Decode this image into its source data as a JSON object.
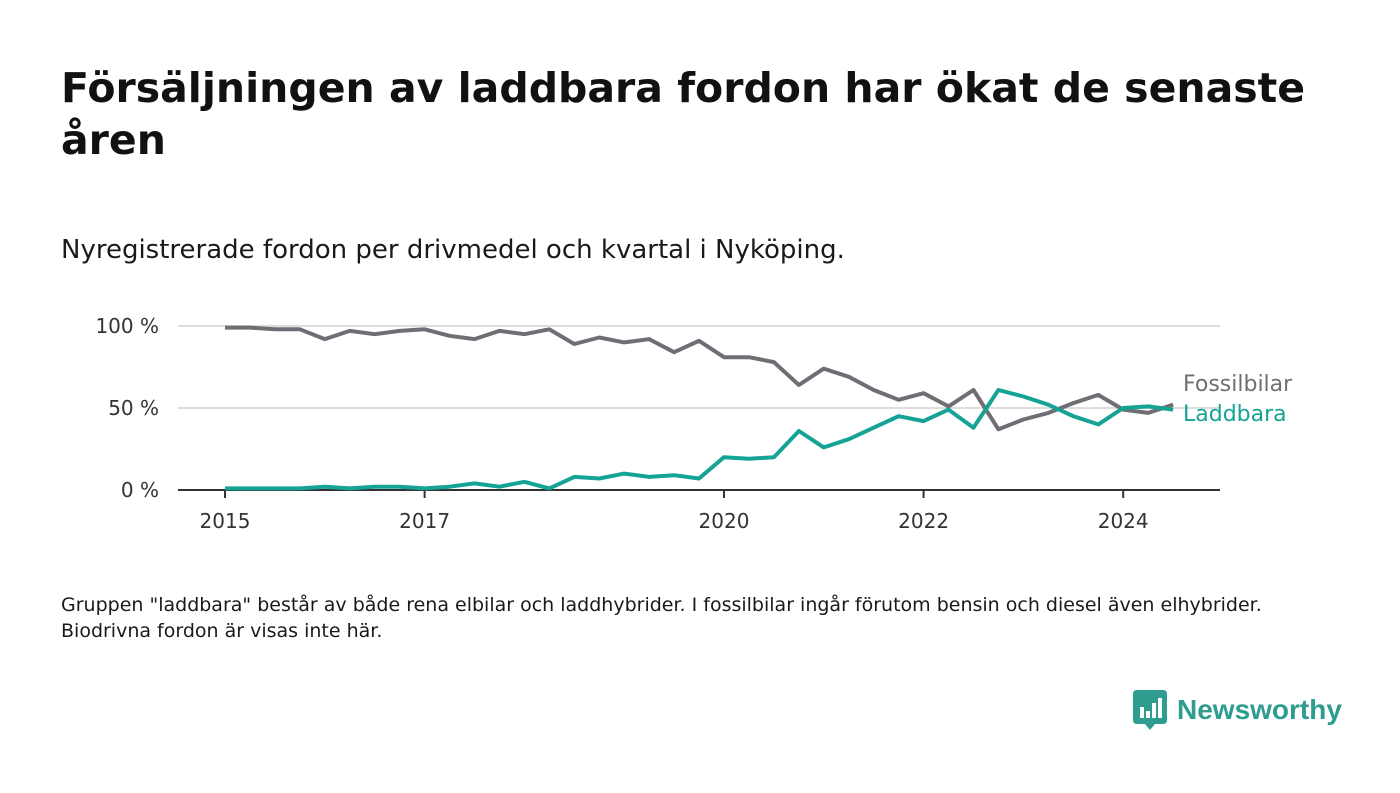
{
  "title": "Försäljningen av laddbara fordon har ökat de senaste åren",
  "subtitle": "Nyregistrerade fordon per drivmedel och kvartal i Nyköping.",
  "note": "Gruppen \"laddbara\" består av både rena elbilar och laddhybrider. I fossilbilar ingår förutom bensin och diesel även elhybrider. Biodrivna fordon är visas inte här.",
  "brand": {
    "name": "Newsworthy",
    "icon": "newsworthy-logo-icon",
    "color": "#2e9c8e"
  },
  "chart_data": {
    "type": "line",
    "x": [
      "2015 Q1",
      "2015 Q2",
      "2015 Q3",
      "2015 Q4",
      "2016 Q1",
      "2016 Q2",
      "2016 Q3",
      "2016 Q4",
      "2017 Q1",
      "2017 Q2",
      "2017 Q3",
      "2017 Q4",
      "2018 Q1",
      "2018 Q2",
      "2018 Q3",
      "2018 Q4",
      "2019 Q1",
      "2019 Q2",
      "2019 Q3",
      "2019 Q4",
      "2020 Q1",
      "2020 Q2",
      "2020 Q3",
      "2020 Q4",
      "2021 Q1",
      "2021 Q2",
      "2021 Q3",
      "2021 Q4",
      "2022 Q1",
      "2022 Q2",
      "2022 Q3",
      "2022 Q4",
      "2023 Q1",
      "2023 Q2",
      "2023 Q3",
      "2023 Q4",
      "2024 Q1",
      "2024 Q2",
      "2024 Q3"
    ],
    "x_ticks": [
      {
        "value": "2015 Q1",
        "label": "2015"
      },
      {
        "value": "2017 Q1",
        "label": "2017"
      },
      {
        "value": "2020 Q1",
        "label": "2020"
      },
      {
        "value": "2022 Q1",
        "label": "2022"
      },
      {
        "value": "2024 Q1",
        "label": "2024"
      }
    ],
    "y_ticks": [
      {
        "value": 0,
        "label": "0 %"
      },
      {
        "value": 50,
        "label": "50 %"
      },
      {
        "value": 100,
        "label": "100 %"
      }
    ],
    "ylim": [
      0,
      100
    ],
    "grid": "horizontal",
    "series": [
      {
        "name": "Fossilbilar",
        "color": "#6f6e74",
        "values": [
          99,
          99,
          98,
          98,
          92,
          97,
          95,
          97,
          98,
          94,
          92,
          97,
          95,
          98,
          89,
          93,
          90,
          92,
          84,
          91,
          81,
          81,
          78,
          64,
          74,
          69,
          61,
          55,
          59,
          51,
          61,
          37,
          43,
          47,
          53,
          58,
          49,
          47,
          52
        ]
      },
      {
        "name": "Laddbara",
        "color": "#14a394",
        "values": [
          1,
          1,
          1,
          1,
          2,
          1,
          2,
          2,
          1,
          2,
          4,
          2,
          5,
          1,
          8,
          7,
          10,
          8,
          9,
          7,
          20,
          19,
          20,
          36,
          26,
          31,
          38,
          45,
          42,
          49,
          38,
          61,
          57,
          52,
          45,
          40,
          50,
          51,
          49
        ]
      }
    ]
  }
}
